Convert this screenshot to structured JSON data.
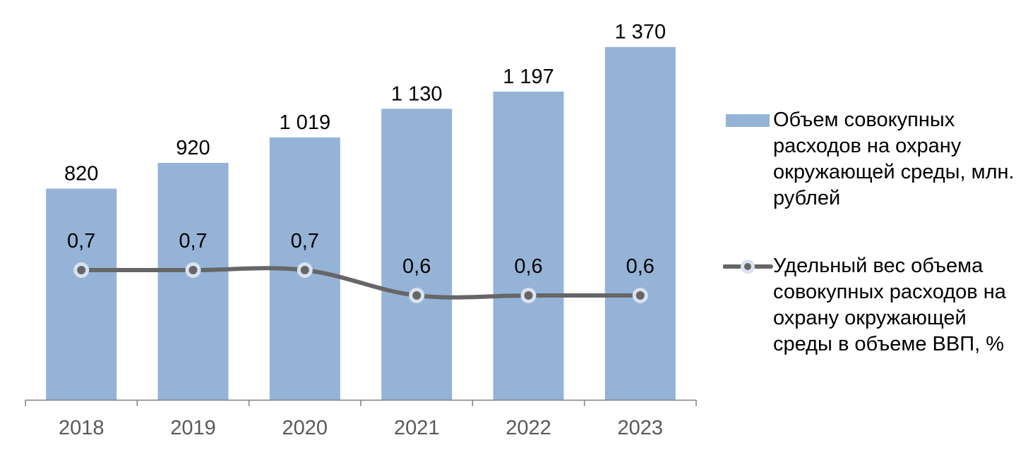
{
  "chart_data": {
    "type": "bar",
    "categories": [
      "2018",
      "2019",
      "2020",
      "2021",
      "2022",
      "2023"
    ],
    "series": [
      {
        "name": "Объем совокупных расходов на охрану окружающей среды, млн. рублей",
        "chart_type": "bar",
        "axis": "primary",
        "color": "#95b3d7",
        "values": [
          820,
          920,
          1019,
          1130,
          1197,
          1370
        ],
        "labels": [
          "820",
          "920",
          "1 019",
          "1 130",
          "1 197",
          "1 370"
        ]
      },
      {
        "name": "Удельный вес объема совокупных расходов на охрану окружающей среды в объеме ВВП, %",
        "chart_type": "line",
        "axis": "secondary",
        "smooth": true,
        "color": "#666666",
        "marker_color": "#d9e2f0",
        "values": [
          0.7,
          0.7,
          0.7,
          0.6,
          0.6,
          0.6
        ],
        "labels": [
          "0,7",
          "0,7",
          "0,7",
          "0,6",
          "0,6",
          "0,6"
        ]
      }
    ],
    "ylim": [
      0,
      1400
    ],
    "y2lim": [
      0,
      1.1
    ],
    "y_axis_visible": false,
    "grid": false,
    "legend_position": "right",
    "axis_color": "#808080",
    "tick_label_color": "#595959",
    "title": "",
    "xlabel": "",
    "ylabel": ""
  }
}
